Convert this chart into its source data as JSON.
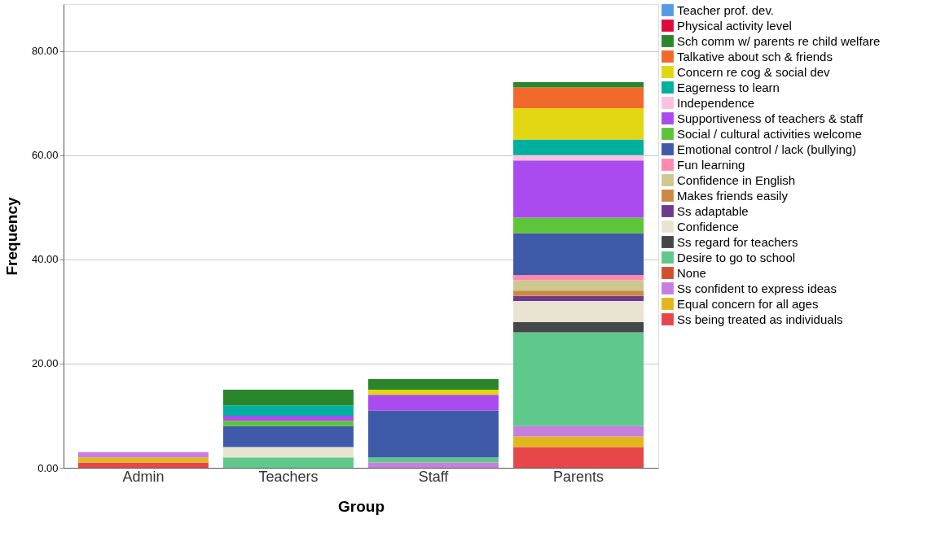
{
  "chart_data": {
    "type": "bar",
    "stacked": true,
    "xlabel": "Group",
    "ylabel": "Frequency",
    "categories": [
      "Admin",
      "Teachers",
      "Staff",
      "Parents"
    ],
    "ylim": [
      0,
      89
    ],
    "yticks": [
      {
        "value": 0,
        "label": "0.00"
      },
      {
        "value": 20,
        "label": "20.00"
      },
      {
        "value": 40,
        "label": "40.00"
      },
      {
        "value": 60,
        "label": "60.00"
      },
      {
        "value": 80,
        "label": "80.00"
      }
    ],
    "grid": "y",
    "legend": "right",
    "series": [
      {
        "name": "Ss being treated as individuals",
        "color": "#e8474a",
        "values": [
          1,
          0,
          0,
          4
        ]
      },
      {
        "name": "Equal concern for all ages",
        "color": "#e0b81e",
        "values": [
          1,
          0,
          0,
          2
        ]
      },
      {
        "name": "Ss confident to express ideas",
        "color": "#c87ee0",
        "values": [
          1,
          0,
          1,
          2
        ]
      },
      {
        "name": "None",
        "color": "#d05030",
        "values": [
          0,
          0,
          0,
          0
        ]
      },
      {
        "name": "Desire to go to school",
        "color": "#5ec98a",
        "values": [
          0,
          2,
          1,
          18
        ]
      },
      {
        "name": "Ss regard for teachers",
        "color": "#444648",
        "values": [
          0,
          0,
          0,
          2
        ]
      },
      {
        "name": "Confidence",
        "color": "#e9e4d2",
        "values": [
          0,
          2,
          0,
          4
        ]
      },
      {
        "name": "Ss adaptable",
        "color": "#6e3a8c",
        "values": [
          0,
          0,
          0,
          1
        ]
      },
      {
        "name": "Makes friends easily",
        "color": "#cc8844",
        "values": [
          0,
          0,
          0,
          1
        ]
      },
      {
        "name": "Confidence in English",
        "color": "#ccc88e",
        "values": [
          0,
          0,
          0,
          2
        ]
      },
      {
        "name": "Fun learning",
        "color": "#ff88b0",
        "values": [
          0,
          0,
          0,
          1
        ]
      },
      {
        "name": "Emotional control / lack (bullying)",
        "color": "#3f5aa8",
        "values": [
          0,
          4,
          9,
          8
        ]
      },
      {
        "name": "Social / cultural activities welcome",
        "color": "#5ec43a",
        "values": [
          0,
          1,
          0,
          3
        ]
      },
      {
        "name": "Supportiveness of teachers & staff",
        "color": "#a94bef",
        "values": [
          0,
          1,
          3,
          11
        ]
      },
      {
        "name": "Independence",
        "color": "#ffc0e0",
        "values": [
          0,
          0,
          0,
          1
        ]
      },
      {
        "name": "Eagerness to learn",
        "color": "#00b09e",
        "values": [
          0,
          2,
          0,
          3
        ]
      },
      {
        "name": "Concern re cog & social dev",
        "color": "#e2d612",
        "values": [
          0,
          0,
          1,
          6
        ]
      },
      {
        "name": "Talkative about sch & friends",
        "color": "#f2692c",
        "values": [
          0,
          0,
          0,
          4
        ]
      },
      {
        "name": "Sch comm w/ parents re child welfare",
        "color": "#2a862a",
        "values": [
          0,
          3,
          2,
          1
        ]
      },
      {
        "name": "Physical activity level",
        "color": "#dd0a3a",
        "values": [
          0,
          0,
          0,
          0
        ]
      },
      {
        "name": "Teacher prof. dev.",
        "color": "#5599e8",
        "values": [
          0,
          0,
          0,
          0
        ]
      }
    ]
  }
}
